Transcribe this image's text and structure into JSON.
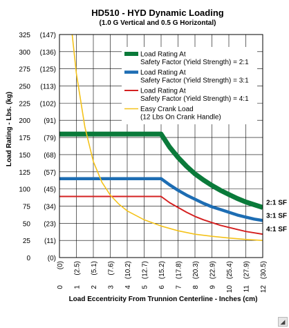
{
  "chart_data": {
    "type": "line",
    "title": "HD510 - HYD Dynamic Loading",
    "subtitle": "(1.0 G Vertical and 0.5 G Horizontal)",
    "xlabel": "Load Eccentricity From Trunnion Centerline - Inches (cm)",
    "ylabel": "Load Rating - Lbs. (kg)",
    "xlim": [
      0,
      12
    ],
    "ylim": [
      0,
      325
    ],
    "x_ticks": [
      0,
      1,
      2,
      3,
      4,
      5,
      6,
      7,
      8,
      9,
      10,
      11,
      12
    ],
    "x_tick_labels": [
      "0",
      "1",
      "2",
      "3",
      "4",
      "5",
      "6",
      "7",
      "8",
      "9",
      "10",
      "11",
      "12"
    ],
    "x_tick_labels_cm": [
      "(0)",
      "(2.5)",
      "(5.1)",
      "(7.6)",
      "(10.2)",
      "(12.7)",
      "(15.2)",
      "(17.8)",
      "(20.3)",
      "(22.9)",
      "(25.4)",
      "(27.9)",
      "(30.5)"
    ],
    "y_ticks": [
      0,
      25,
      50,
      75,
      100,
      125,
      150,
      175,
      200,
      225,
      250,
      275,
      300,
      325
    ],
    "y_tick_labels": [
      "0",
      "25",
      "50",
      "75",
      "100",
      "125",
      "150",
      "175",
      "200",
      "225",
      "250",
      "275",
      "300",
      "325"
    ],
    "y_tick_labels_kg": [
      "(0)",
      "(11)",
      "(23)",
      "(34)",
      "(45)",
      "(57)",
      "(68)",
      "(79)",
      "(91)",
      "(102)",
      "(113)",
      "(125)",
      "(136)",
      "(147)"
    ],
    "grid": true,
    "legend_position": "top-right",
    "series": [
      {
        "name": "Load Rating At Safety Factor (Yield Strength) = 2:1",
        "color": "#0a7a3a",
        "end_label": "2:1 SF",
        "x": [
          0,
          6,
          6.5,
          7,
          7.5,
          8,
          8.5,
          9,
          9.5,
          10,
          10.5,
          11,
          11.5,
          12
        ],
        "y": [
          180,
          180,
          161,
          146,
          133,
          122,
          113,
          105,
          98,
          92,
          86,
          81,
          77,
          73
        ]
      },
      {
        "name": "Load Rating At Safety Factor (Yield Strength) = 3:1",
        "color": "#1d6db3",
        "end_label": "3:1 SF",
        "x": [
          0,
          6,
          6.5,
          7,
          7.5,
          8,
          8.5,
          9,
          9.5,
          10,
          10.5,
          11,
          11.5,
          12
        ],
        "y": [
          115,
          115,
          106,
          98,
          91,
          85,
          79,
          74,
          70,
          66,
          62,
          59,
          56,
          54
        ]
      },
      {
        "name": "Load Rating At Safety Factor (Yield Strength) = 4:1",
        "color": "#d42020",
        "end_label": "4:1 SF",
        "x": [
          0,
          6,
          6.5,
          7,
          7.5,
          8,
          8.5,
          9,
          9.5,
          10,
          10.5,
          11,
          11.5,
          12
        ],
        "y": [
          89,
          89,
          80,
          73,
          66,
          60,
          55,
          51,
          47,
          44,
          41,
          38,
          36,
          34
        ]
      },
      {
        "name": "Easy Crank Load (12 Lbs On Crank Handle)",
        "color": "#f4c21a",
        "end_label": "",
        "x": [
          0.75,
          1,
          1.5,
          2,
          2.5,
          3,
          3.5,
          4,
          5,
          6,
          7,
          8,
          9,
          10,
          11,
          12
        ],
        "y": [
          325,
          268,
          190,
          140,
          110,
          91,
          78,
          68,
          55,
          46,
          39,
          34,
          31,
          28.5,
          26.5,
          25
        ]
      }
    ]
  }
}
